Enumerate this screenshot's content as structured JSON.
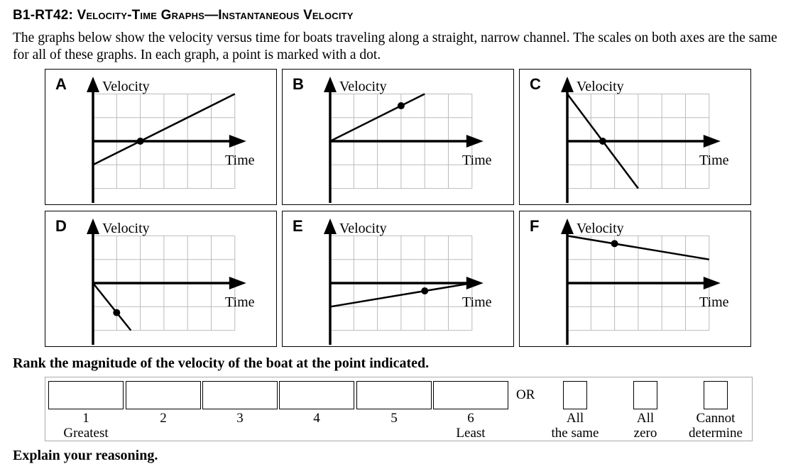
{
  "title": "B1-RT42: Velocity-Time Graphs—Instantaneous Velocity",
  "intro": "The graphs below show the velocity versus time for boats traveling along a straight, narrow channel. The scales on both axes are the same for all of these graphs. In each graph, a point is marked with a dot.",
  "axis_labels": {
    "y": "Velocity",
    "x": "Time"
  },
  "chart_data": [
    {
      "type": "line",
      "label": "A",
      "line": [
        [
          0,
          -1
        ],
        [
          6,
          2
        ]
      ],
      "dot": [
        2,
        0
      ],
      "xlim": [
        0,
        6
      ],
      "ylim": [
        -2,
        2
      ]
    },
    {
      "type": "line",
      "label": "B",
      "line": [
        [
          0,
          0
        ],
        [
          4,
          2
        ]
      ],
      "dot": [
        3,
        1.5
      ],
      "xlim": [
        0,
        6
      ],
      "ylim": [
        -2,
        2
      ]
    },
    {
      "type": "line",
      "label": "C",
      "line": [
        [
          0,
          2
        ],
        [
          3,
          -2
        ]
      ],
      "dot": [
        1.5,
        0
      ],
      "xlim": [
        0,
        6
      ],
      "ylim": [
        -2,
        2
      ]
    },
    {
      "type": "line",
      "label": "D",
      "line": [
        [
          0,
          0
        ],
        [
          1.6,
          -2
        ]
      ],
      "dot": [
        1,
        -1.25
      ],
      "xlim": [
        0,
        6
      ],
      "ylim": [
        -2,
        2
      ]
    },
    {
      "type": "line",
      "label": "E",
      "line": [
        [
          0,
          -1
        ],
        [
          6,
          0
        ]
      ],
      "dot": [
        4,
        -0.33
      ],
      "xlim": [
        0,
        6
      ],
      "ylim": [
        -2,
        2
      ]
    },
    {
      "type": "line",
      "label": "F",
      "line": [
        [
          0,
          2
        ],
        [
          6,
          1
        ]
      ],
      "dot": [
        2,
        1.67
      ],
      "xlim": [
        0,
        6
      ],
      "ylim": [
        -2,
        2
      ]
    }
  ],
  "rank_question": "Rank the magnitude of the velocity of the boat at the point indicated.",
  "ranks": [
    {
      "n": "1",
      "sub": "Greatest"
    },
    {
      "n": "2",
      "sub": ""
    },
    {
      "n": "3",
      "sub": ""
    },
    {
      "n": "4",
      "sub": ""
    },
    {
      "n": "5",
      "sub": ""
    },
    {
      "n": "6",
      "sub": "Least"
    }
  ],
  "or_label": "OR",
  "options": [
    {
      "l1": "All",
      "l2": "the same"
    },
    {
      "l1": "All",
      "l2": "zero"
    },
    {
      "l1": "Cannot",
      "l2": "determine"
    }
  ],
  "explain": "Explain your reasoning."
}
